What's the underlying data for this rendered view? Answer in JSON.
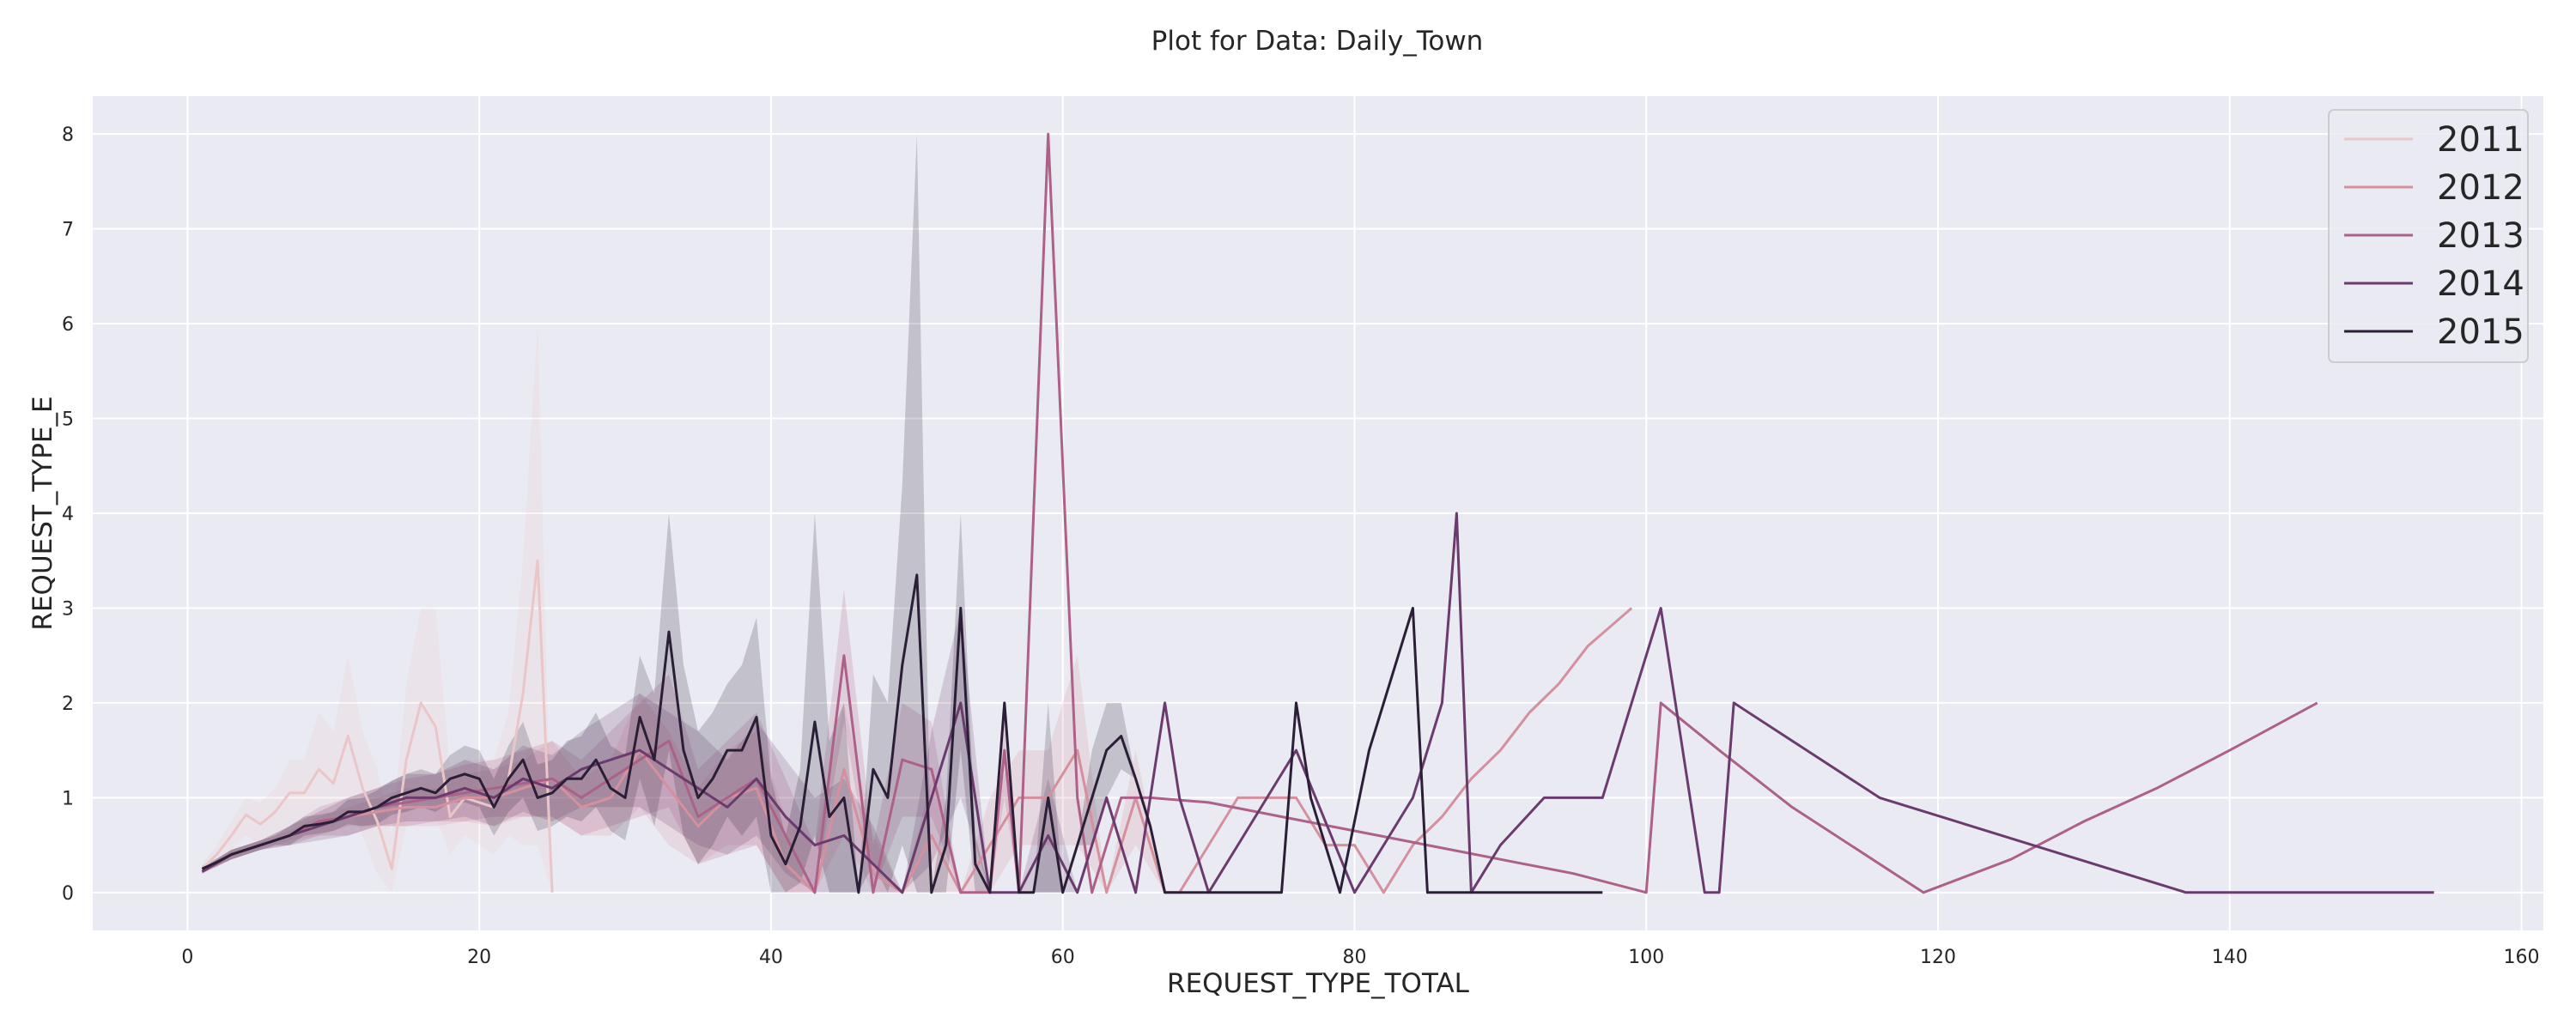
{
  "chart_data": {
    "type": "line",
    "title": "Plot for Data: Daily_Town",
    "xlabel": "REQUEST_TYPE_TOTAL",
    "ylabel": "REQUEST_TYPE_E",
    "xlim": [
      -6.5,
      161.5
    ],
    "ylim": [
      -0.4,
      8.4
    ],
    "xticks": [
      0,
      20,
      40,
      60,
      80,
      100,
      120,
      140,
      160
    ],
    "yticks": [
      0,
      1,
      2,
      3,
      4,
      5,
      6,
      7,
      8
    ],
    "grid": true,
    "legend_position": "top-right",
    "series": [
      {
        "name": "2011",
        "color": "#ebc6c9",
        "x": [
          1,
          2,
          3,
          4,
          5,
          6,
          7,
          8,
          9,
          10,
          11,
          12,
          13,
          14,
          15,
          16,
          17,
          18,
          19,
          20,
          21,
          22,
          23,
          24,
          25
        ],
        "y": [
          0.25,
          0.4,
          0.6,
          0.82,
          0.72,
          0.85,
          1.05,
          1.05,
          1.3,
          1.15,
          1.65,
          1.1,
          0.75,
          0.25,
          1.4,
          2.0,
          1.75,
          0.8,
          1.0,
          0.95,
          0.9,
          1.2,
          2.1,
          3.5,
          0.0
        ],
        "lower": [
          0.2,
          0.3,
          0.45,
          0.6,
          0.5,
          0.6,
          0.7,
          0.7,
          0.8,
          0.7,
          0.9,
          0.6,
          0.2,
          0.0,
          0.7,
          1.0,
          0.8,
          0.4,
          0.6,
          0.5,
          0.4,
          0.6,
          0.5,
          0.5,
          0.0
        ],
        "upper": [
          0.3,
          0.5,
          0.75,
          1.0,
          0.95,
          1.1,
          1.4,
          1.4,
          1.9,
          1.7,
          2.5,
          1.7,
          1.3,
          0.6,
          2.2,
          3.0,
          3.0,
          1.3,
          1.4,
          1.4,
          1.4,
          1.9,
          3.5,
          6.0,
          0.0
        ]
      },
      {
        "name": "2012",
        "color": "#d58f9d",
        "x": [
          1,
          3,
          5,
          7,
          9,
          11,
          13,
          15,
          17,
          19,
          21,
          23,
          25,
          27,
          29,
          31,
          33,
          35,
          37,
          39,
          41,
          43,
          45,
          47,
          49,
          51,
          53,
          55,
          57,
          59,
          61,
          63,
          65,
          67,
          68,
          70,
          72,
          74,
          76,
          78,
          80,
          82,
          84,
          86,
          88,
          90,
          92,
          94,
          96,
          99
        ],
        "y": [
          0.22,
          0.4,
          0.5,
          0.6,
          0.7,
          0.8,
          0.85,
          0.9,
          0.9,
          1.0,
          1.0,
          1.1,
          1.2,
          0.9,
          1.0,
          1.5,
          1.1,
          0.7,
          1.0,
          1.1,
          0.3,
          0.0,
          1.3,
          0.2,
          0.0,
          0.6,
          0.0,
          0.5,
          1.0,
          1.0,
          1.5,
          0.0,
          1.0,
          0.0,
          0.0,
          0.5,
          1.0,
          1.0,
          1.0,
          0.5,
          0.5,
          0.0,
          0.5,
          0.8,
          1.2,
          1.5,
          1.9,
          2.2,
          2.6,
          3.0
        ],
        "lower": [
          0.2,
          0.35,
          0.45,
          0.55,
          0.6,
          0.7,
          0.7,
          0.7,
          0.7,
          0.75,
          0.7,
          0.8,
          0.8,
          0.6,
          0.6,
          0.9,
          0.5,
          0.3,
          0.5,
          0.5,
          0.0,
          0.0,
          0.6,
          0.0,
          0.0,
          0.0,
          0.0,
          0.0,
          0.5,
          0.5,
          0.5,
          0.0,
          0.5,
          0.0,
          0.0,
          0.5,
          1.0,
          1.0,
          1.0,
          0.5,
          0.5,
          0.0,
          0.5,
          0.8,
          1.2,
          1.5,
          1.9,
          2.2,
          2.6,
          3.0
        ],
        "upper": [
          0.25,
          0.45,
          0.55,
          0.65,
          0.8,
          0.9,
          1.0,
          1.1,
          1.1,
          1.25,
          1.3,
          1.4,
          1.6,
          1.2,
          1.4,
          2.1,
          1.7,
          1.1,
          1.5,
          1.7,
          0.8,
          0.5,
          2.0,
          0.6,
          0.0,
          1.2,
          0.0,
          1.0,
          1.5,
          1.5,
          2.5,
          0.0,
          1.5,
          0.0,
          0.0,
          0.5,
          1.0,
          1.0,
          1.0,
          0.5,
          0.5,
          0.0,
          0.5,
          0.8,
          1.2,
          1.5,
          1.9,
          2.2,
          2.6,
          3.0
        ]
      },
      {
        "name": "2013",
        "color": "#ad6188",
        "x": [
          1,
          3,
          5,
          7,
          9,
          11,
          13,
          15,
          17,
          19,
          21,
          23,
          25,
          27,
          29,
          31,
          33,
          35,
          37,
          39,
          41,
          43,
          45,
          47,
          49,
          51,
          53,
          55,
          56,
          57,
          59,
          61,
          62,
          64,
          66,
          70,
          75,
          80,
          85,
          90,
          95,
          100,
          101,
          105,
          110,
          115,
          119,
          125,
          130,
          135,
          140,
          146
        ],
        "y": [
          0.22,
          0.4,
          0.5,
          0.6,
          0.75,
          0.8,
          0.9,
          0.95,
          1.0,
          1.05,
          1.1,
          1.15,
          1.2,
          1.0,
          1.2,
          1.4,
          1.6,
          0.8,
          1.0,
          1.2,
          0.6,
          0.0,
          2.5,
          0.0,
          1.4,
          1.3,
          0.0,
          0.0,
          1.5,
          0.0,
          8.0,
          1.0,
          0.0,
          1.0,
          1.0,
          0.95,
          0.8,
          0.65,
          0.5,
          0.35,
          0.2,
          0.0,
          2.0,
          1.5,
          0.9,
          0.4,
          0.0,
          0.35,
          0.75,
          1.1,
          1.5,
          2.0
        ],
        "lower": [
          0.2,
          0.35,
          0.45,
          0.5,
          0.6,
          0.6,
          0.7,
          0.7,
          0.75,
          0.75,
          0.8,
          0.8,
          0.8,
          0.6,
          0.7,
          0.8,
          0.9,
          0.3,
          0.4,
          0.5,
          0.0,
          0.0,
          1.8,
          0.0,
          0.8,
          0.8,
          0.0,
          0.0,
          1.0,
          0.0,
          8.0,
          1.0,
          0.0,
          1.0,
          1.0,
          0.95,
          0.8,
          0.65,
          0.5,
          0.35,
          0.2,
          0.0,
          2.0,
          1.5,
          0.9,
          0.4,
          0.0,
          0.35,
          0.75,
          1.1,
          1.5,
          2.0
        ],
        "upper": [
          0.25,
          0.45,
          0.55,
          0.7,
          0.9,
          1.0,
          1.1,
          1.2,
          1.25,
          1.35,
          1.4,
          1.5,
          1.6,
          1.4,
          1.7,
          2.0,
          2.3,
          1.3,
          1.6,
          1.9,
          1.2,
          0.5,
          3.2,
          0.5,
          2.0,
          1.8,
          0.0,
          0.0,
          2.0,
          0.0,
          8.0,
          1.0,
          0.0,
          1.0,
          1.0,
          0.95,
          0.8,
          0.65,
          0.5,
          0.35,
          0.2,
          0.0,
          2.0,
          1.5,
          0.9,
          0.4,
          0.0,
          0.35,
          0.75,
          1.1,
          1.5,
          2.0
        ]
      },
      {
        "name": "2014",
        "color": "#6b3b6e",
        "x": [
          1,
          3,
          5,
          7,
          9,
          11,
          13,
          15,
          17,
          19,
          21,
          23,
          25,
          27,
          29,
          31,
          33,
          35,
          37,
          39,
          41,
          43,
          45,
          47,
          49,
          51,
          53,
          55,
          57,
          59,
          61,
          63,
          65,
          67,
          68,
          70,
          72,
          74,
          76,
          80,
          84,
          86,
          87,
          88,
          90,
          93,
          97,
          99,
          101,
          103,
          104,
          105,
          106,
          116,
          137,
          154
        ],
        "y": [
          0.22,
          0.4,
          0.5,
          0.6,
          0.7,
          0.8,
          0.9,
          1.0,
          1.0,
          1.1,
          1.0,
          1.2,
          1.1,
          1.3,
          1.4,
          1.5,
          1.3,
          1.1,
          0.9,
          1.2,
          0.8,
          0.5,
          0.6,
          0.3,
          0.0,
          1.0,
          2.0,
          0.0,
          0.0,
          0.6,
          0.0,
          1.0,
          0.0,
          2.0,
          1.0,
          0.0,
          0.5,
          1.0,
          1.5,
          0.0,
          1.0,
          2.0,
          4.0,
          0.0,
          0.5,
          1.0,
          1.0,
          2.0,
          3.0,
          1.0,
          0.0,
          0.0,
          2.0,
          1.0,
          0.0,
          0.0
        ],
        "lower": [
          0.2,
          0.35,
          0.45,
          0.5,
          0.55,
          0.6,
          0.7,
          0.75,
          0.75,
          0.8,
          0.7,
          0.85,
          0.75,
          0.9,
          0.9,
          0.9,
          0.7,
          0.5,
          0.4,
          0.6,
          0.2,
          0.0,
          0.0,
          0.0,
          0.0,
          0.3,
          1.0,
          0.0,
          0.0,
          0.0,
          0.0,
          1.0,
          0.0,
          2.0,
          1.0,
          0.0,
          0.5,
          1.0,
          1.5,
          0.0,
          1.0,
          2.0,
          4.0,
          0.0,
          0.5,
          1.0,
          1.0,
          2.0,
          3.0,
          1.0,
          0.0,
          0.0,
          2.0,
          1.0,
          0.0,
          0.0
        ],
        "upper": [
          0.25,
          0.45,
          0.55,
          0.7,
          0.85,
          1.0,
          1.1,
          1.25,
          1.25,
          1.4,
          1.3,
          1.55,
          1.45,
          1.7,
          1.9,
          2.1,
          1.9,
          1.7,
          1.4,
          1.8,
          1.4,
          1.0,
          1.2,
          0.7,
          0.0,
          1.7,
          3.0,
          0.0,
          0.0,
          1.2,
          0.0,
          1.0,
          0.0,
          2.0,
          1.0,
          0.0,
          0.5,
          1.0,
          1.5,
          0.0,
          1.0,
          2.0,
          4.0,
          0.0,
          0.5,
          1.0,
          1.0,
          2.0,
          3.0,
          1.0,
          0.0,
          0.0,
          2.0,
          1.0,
          0.0,
          0.0
        ]
      },
      {
        "name": "2015",
        "color": "#2a1f36",
        "x": [
          1,
          2,
          3,
          4,
          5,
          6,
          7,
          8,
          9,
          10,
          11,
          12,
          13,
          14,
          15,
          16,
          17,
          18,
          19,
          20,
          21,
          22,
          23,
          24,
          25,
          26,
          27,
          28,
          29,
          30,
          31,
          32,
          33,
          34,
          35,
          36,
          37,
          38,
          39,
          40,
          41,
          42,
          43,
          44,
          45,
          46,
          47,
          48,
          49,
          50,
          51,
          52,
          53,
          54,
          55,
          56,
          57,
          58,
          59,
          60,
          61,
          62,
          63,
          64,
          65,
          66,
          67,
          68,
          69,
          70,
          72,
          75,
          76,
          77,
          79,
          81,
          84,
          85,
          86,
          88,
          90,
          97
        ],
        "y": [
          0.25,
          0.32,
          0.4,
          0.45,
          0.5,
          0.55,
          0.6,
          0.7,
          0.72,
          0.75,
          0.85,
          0.85,
          0.9,
          1.0,
          1.05,
          1.1,
          1.05,
          1.2,
          1.25,
          1.2,
          0.9,
          1.2,
          1.4,
          1.0,
          1.05,
          1.2,
          1.2,
          1.4,
          1.1,
          1.0,
          1.85,
          1.4,
          2.75,
          1.5,
          1.0,
          1.2,
          1.5,
          1.5,
          1.85,
          0.6,
          0.3,
          0.7,
          1.8,
          0.8,
          1.0,
          0.0,
          1.3,
          1.0,
          2.4,
          3.35,
          0.0,
          0.5,
          3.0,
          0.3,
          0.0,
          2.0,
          0.0,
          0.0,
          1.0,
          0.0,
          0.5,
          1.0,
          1.5,
          1.65,
          1.2,
          0.7,
          0.0,
          0.0,
          0.0,
          0.0,
          0.0,
          0.0,
          2.0,
          1.0,
          0.0,
          1.5,
          3.0,
          0.0,
          0.0,
          0.0,
          0.0,
          0.0
        ],
        "lower": [
          0.22,
          0.28,
          0.35,
          0.4,
          0.45,
          0.5,
          0.5,
          0.6,
          0.62,
          0.65,
          0.72,
          0.7,
          0.72,
          0.82,
          0.85,
          0.9,
          0.85,
          0.95,
          0.95,
          0.9,
          0.6,
          0.85,
          1.0,
          0.65,
          0.7,
          0.8,
          0.75,
          0.9,
          0.65,
          0.55,
          1.2,
          0.7,
          1.5,
          0.6,
          0.3,
          0.5,
          0.8,
          0.6,
          0.8,
          0.0,
          0.0,
          0.1,
          0.6,
          0.0,
          0.0,
          0.0,
          0.3,
          0.0,
          0.5,
          0.0,
          0.0,
          0.0,
          1.5,
          0.0,
          0.0,
          2.0,
          0.0,
          0.0,
          0.0,
          0.0,
          0.5,
          0.5,
          1.0,
          1.3,
          1.2,
          0.7,
          0.0,
          0.0,
          0.0,
          0.0,
          0.0,
          0.0,
          2.0,
          1.0,
          0.0,
          1.5,
          3.0,
          0.0,
          0.0,
          0.0,
          0.0,
          0.0
        ],
        "upper": [
          0.28,
          0.36,
          0.45,
          0.5,
          0.55,
          0.6,
          0.7,
          0.8,
          0.82,
          0.85,
          0.98,
          1.0,
          1.08,
          1.18,
          1.25,
          1.3,
          1.25,
          1.45,
          1.55,
          1.5,
          1.2,
          1.55,
          1.8,
          1.35,
          1.4,
          1.6,
          1.65,
          1.9,
          1.55,
          1.45,
          2.5,
          2.1,
          4.0,
          2.4,
          1.7,
          1.9,
          2.2,
          2.4,
          2.9,
          1.2,
          0.6,
          1.3,
          4.0,
          1.6,
          2.0,
          0.0,
          2.3,
          2.0,
          4.3,
          8.0,
          0.0,
          1.0,
          4.0,
          0.6,
          0.0,
          2.0,
          0.0,
          0.0,
          2.0,
          0.0,
          0.5,
          1.5,
          2.0,
          2.0,
          1.2,
          0.7,
          0.0,
          0.0,
          0.0,
          0.0,
          0.0,
          0.0,
          2.0,
          1.0,
          0.0,
          1.5,
          3.0,
          0.0,
          0.0,
          0.0,
          0.0,
          0.0
        ]
      }
    ]
  }
}
